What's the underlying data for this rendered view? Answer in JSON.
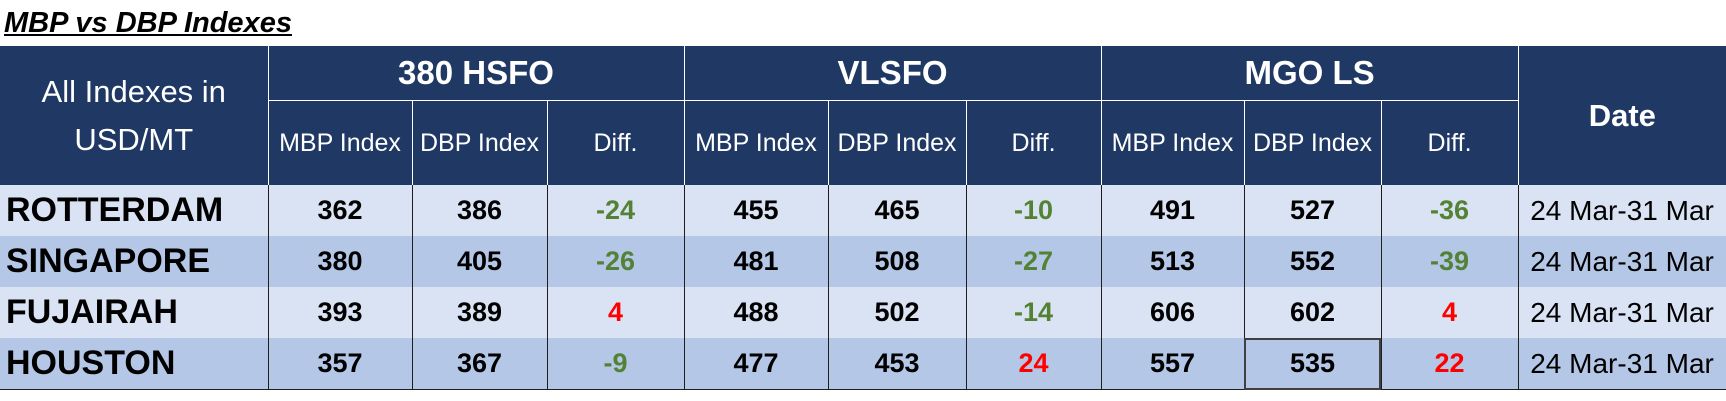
{
  "title": "MBP vs DBP Indexes",
  "header": {
    "corner": "All Indexes in USD/MT",
    "groups": [
      "380 HSFO",
      "VLSFO",
      "MGO LS"
    ],
    "sub_labels": [
      "MBP Index",
      "DBP Index",
      "Diff."
    ],
    "date_label": "Date"
  },
  "colors": {
    "header_bg": "#1f3864",
    "row_light": "#dae3f3",
    "row_dark": "#b4c7e7",
    "positive_diff": "#ff0000",
    "negative_diff": "#548235"
  },
  "rows": [
    {
      "port": "ROTTERDAM",
      "hsfo": {
        "mbp": "362",
        "dbp": "386",
        "diff": "-24"
      },
      "vlsfo": {
        "mbp": "455",
        "dbp": "465",
        "diff": "-10"
      },
      "mgo": {
        "mbp": "491",
        "dbp": "527",
        "diff": "-36"
      },
      "date": "24 Mar-31 Mar"
    },
    {
      "port": "SINGAPORE",
      "hsfo": {
        "mbp": "380",
        "dbp": "405",
        "diff": "-26"
      },
      "vlsfo": {
        "mbp": "481",
        "dbp": "508",
        "diff": "-27"
      },
      "mgo": {
        "mbp": "513",
        "dbp": "552",
        "diff": "-39"
      },
      "date": "24 Mar-31 Mar"
    },
    {
      "port": "FUJAIRAH",
      "hsfo": {
        "mbp": "393",
        "dbp": "389",
        "diff": "4"
      },
      "vlsfo": {
        "mbp": "488",
        "dbp": "502",
        "diff": "-14"
      },
      "mgo": {
        "mbp": "606",
        "dbp": "602",
        "diff": "4"
      },
      "date": "24 Mar-31 Mar"
    },
    {
      "port": "HOUSTON",
      "hsfo": {
        "mbp": "357",
        "dbp": "367",
        "diff": "-9"
      },
      "vlsfo": {
        "mbp": "477",
        "dbp": "453",
        "diff": "24"
      },
      "mgo": {
        "mbp": "557",
        "dbp": "535",
        "diff": "22"
      },
      "date": "24 Mar-31 Mar"
    }
  ]
}
